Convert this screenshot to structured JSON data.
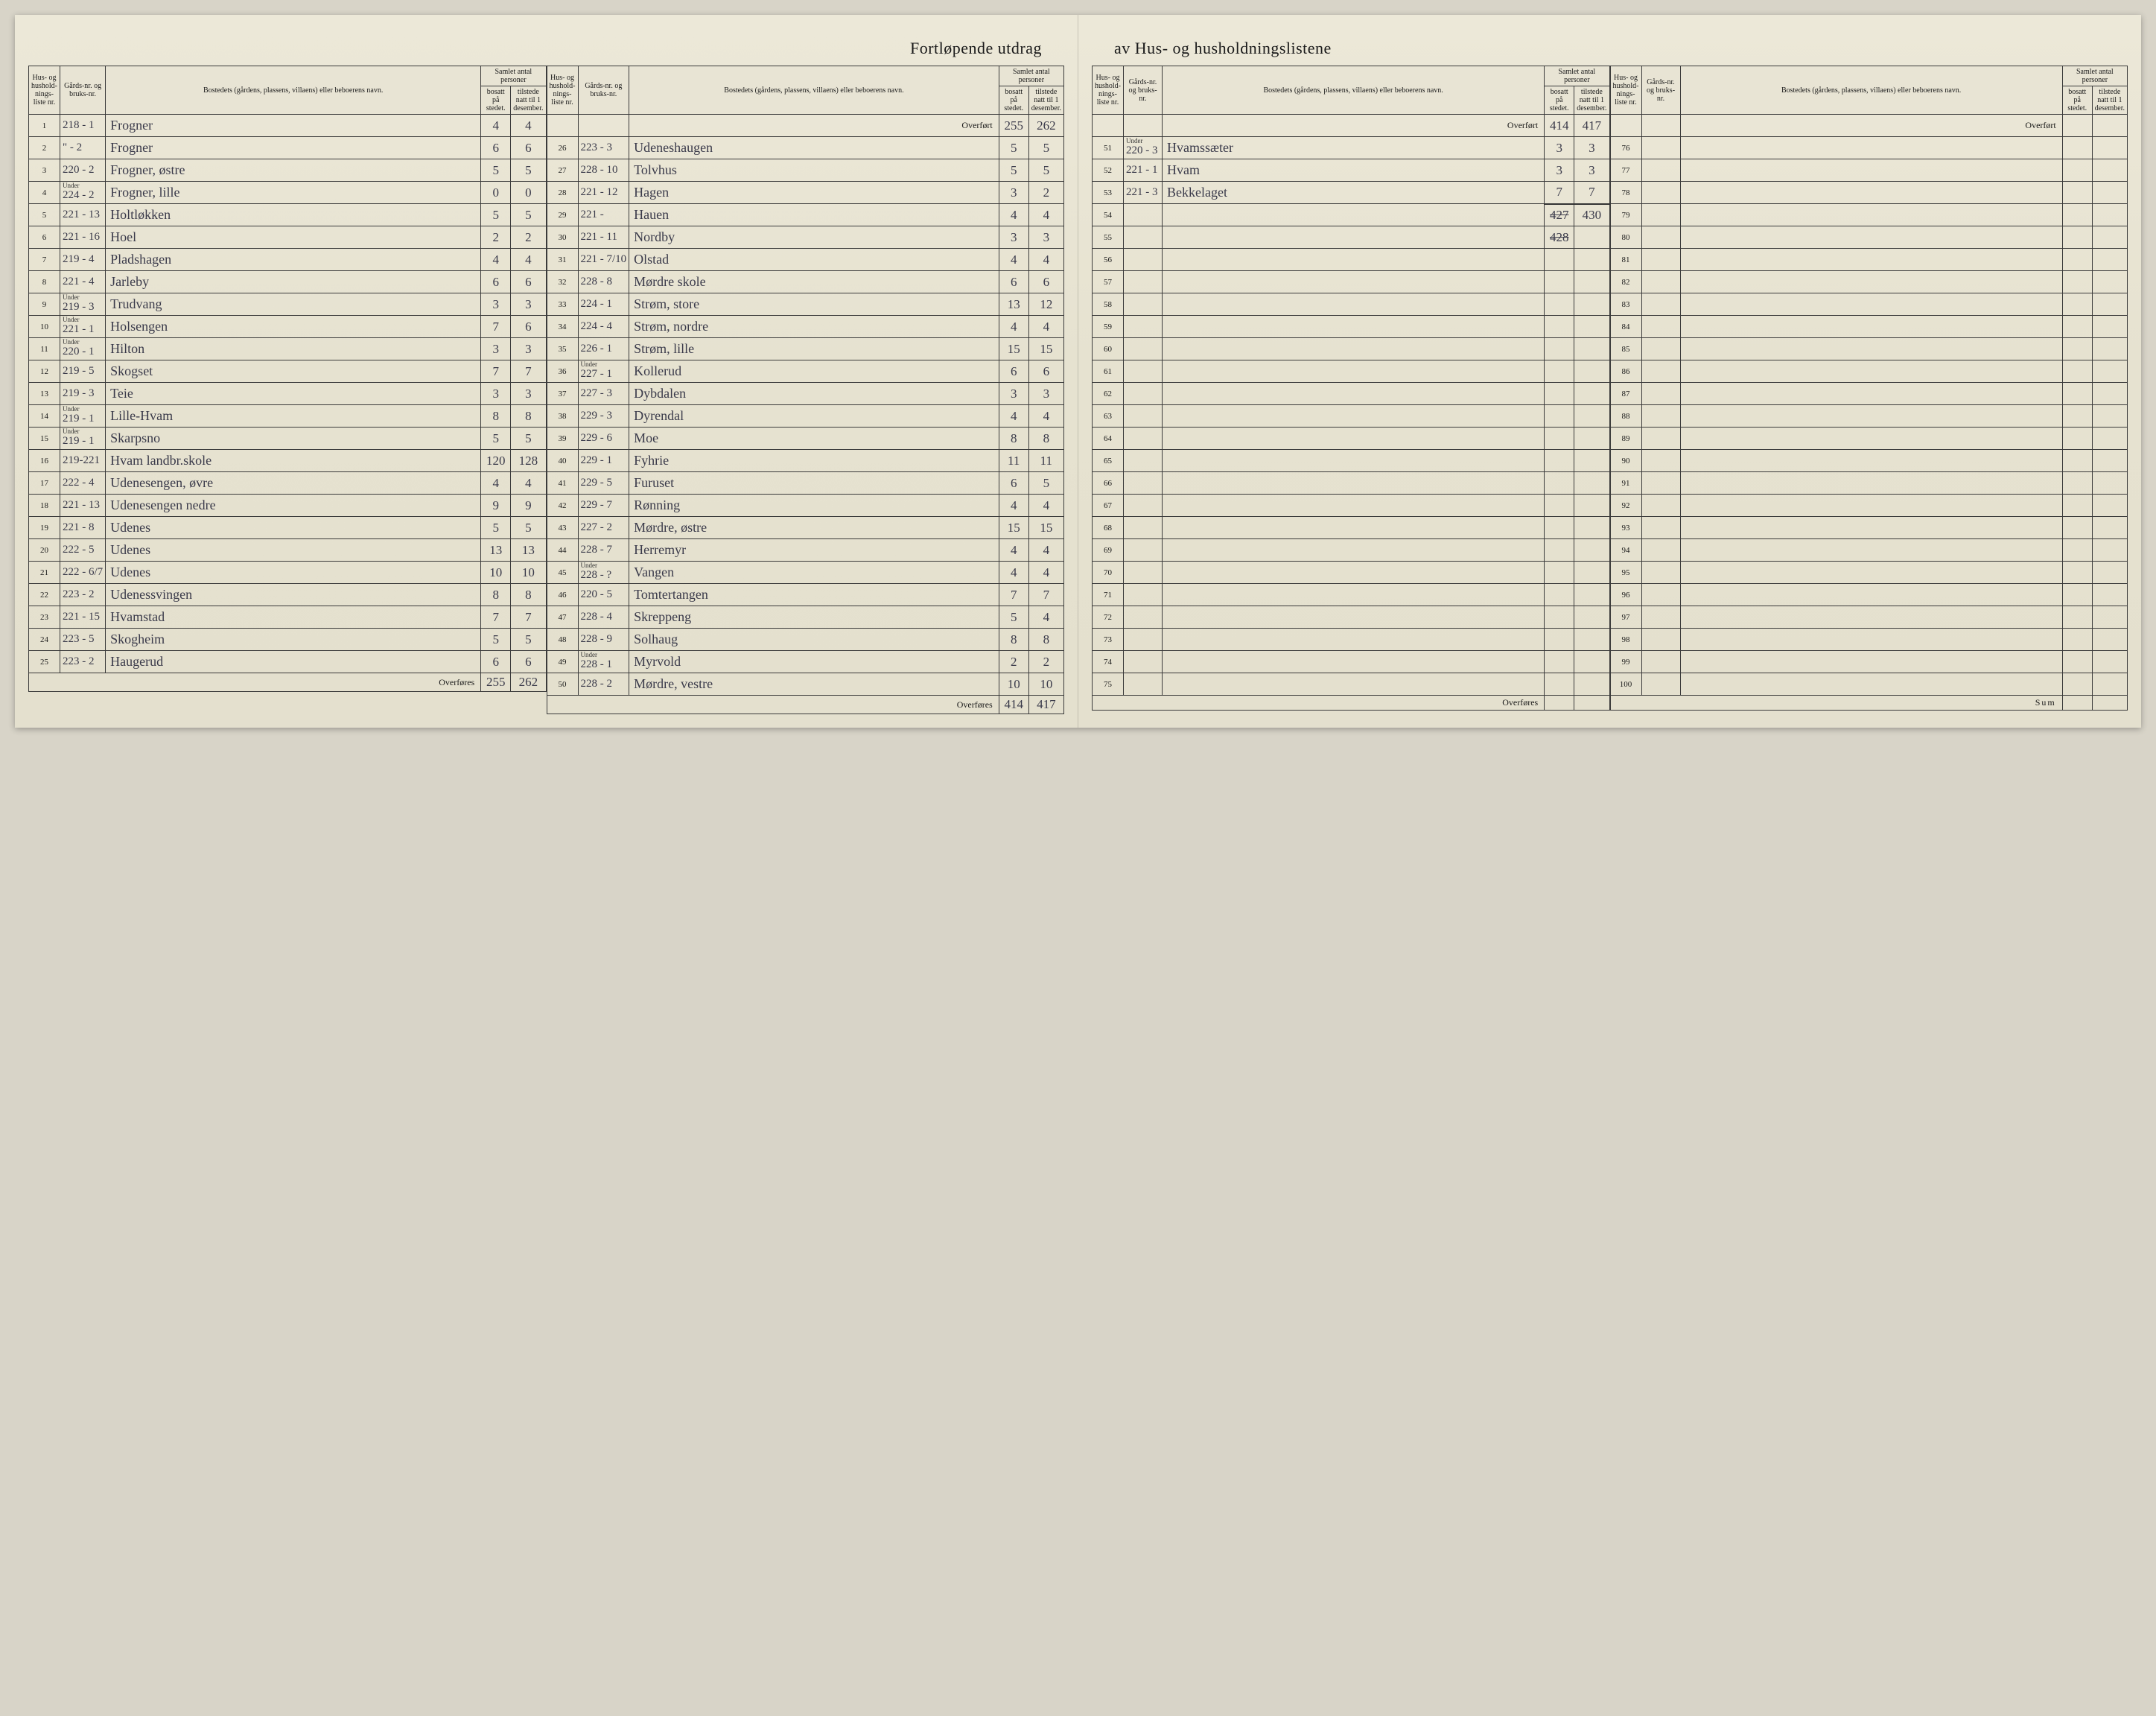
{
  "title_left": "Fortløpende utdrag",
  "title_right": "av Hus- og husholdningslistene",
  "headers": {
    "liste": "Hus- og hushold-nings-liste nr.",
    "gards": "Gårds-nr. og bruks-nr.",
    "bosted": "Bostedets (gårdens, plassens, villaens) eller beboerens navn.",
    "samlet_group": "Samlet antal personer",
    "bosatt": "bosatt på stedet.",
    "tilstede": "tilstede natt til 1 desember."
  },
  "labels": {
    "overfort": "Overført",
    "overfores": "Overføres",
    "sum": "Sum",
    "under": "Under"
  },
  "carry": {
    "col2_top_bosatt": "255",
    "col2_top_tilstede": "262",
    "col1_bot_bosatt": "255",
    "col1_bot_tilstede": "262",
    "col2_bot_bosatt": "414",
    "col2_bot_tilstede": "417",
    "col3_top_bosatt": "414",
    "col3_top_tilstede": "417",
    "col3_tot_bosatt_struck": "427",
    "col3_tot_bosatt_struck2": "428",
    "col3_tot_tilstede": "430"
  },
  "col1": [
    {
      "n": "1",
      "g": "218 - 1",
      "name": "Frogner",
      "b": "4",
      "t": "4"
    },
    {
      "n": "2",
      "g": "\" - 2",
      "name": "Frogner",
      "b": "6",
      "t": "6"
    },
    {
      "n": "3",
      "g": "220 - 2",
      "name": "Frogner, østre",
      "b": "5",
      "t": "5"
    },
    {
      "n": "4",
      "g": "224 - 2",
      "under": true,
      "name": "Frogner, lille",
      "b": "0",
      "t": "0"
    },
    {
      "n": "5",
      "g": "221 - 13",
      "name": "Holtløkken",
      "b": "5",
      "t": "5"
    },
    {
      "n": "6",
      "g": "221 - 16",
      "name": "Hoel",
      "b": "2",
      "t": "2"
    },
    {
      "n": "7",
      "g": "219 - 4",
      "name": "Pladshagen",
      "b": "4",
      "t": "4"
    },
    {
      "n": "8",
      "g": "221 - 4",
      "name": "Jarleby",
      "b": "6",
      "t": "6"
    },
    {
      "n": "9",
      "g": "219 - 3",
      "under": true,
      "name": "Trudvang",
      "b": "3",
      "t": "3"
    },
    {
      "n": "10",
      "g": "221 - 1",
      "under": true,
      "name": "Holsengen",
      "b": "7",
      "t": "6"
    },
    {
      "n": "11",
      "g": "220 - 1",
      "under": true,
      "name": "Hilton",
      "b": "3",
      "t": "3"
    },
    {
      "n": "12",
      "g": "219 - 5",
      "name": "Skogset",
      "b": "7",
      "t": "7"
    },
    {
      "n": "13",
      "g": "219 - 3",
      "name": "Teie",
      "b": "3",
      "t": "3"
    },
    {
      "n": "14",
      "g": "219 - 1",
      "under": true,
      "name": "Lille-Hvam",
      "b": "8",
      "t": "8"
    },
    {
      "n": "15",
      "g": "219 - 1",
      "under": true,
      "name": "Skarpsno",
      "b": "5",
      "t": "5"
    },
    {
      "n": "16",
      "g": "219-221",
      "name": "Hvam landbr.skole",
      "b": "120",
      "t": "128"
    },
    {
      "n": "17",
      "g": "222 - 4",
      "name": "Udenesengen, øvre",
      "b": "4",
      "t": "4"
    },
    {
      "n": "18",
      "g": "221 - 13",
      "name": "Udenesengen nedre",
      "b": "9",
      "t": "9"
    },
    {
      "n": "19",
      "g": "221 - 8",
      "name": "Udenes",
      "b": "5",
      "t": "5"
    },
    {
      "n": "20",
      "g": "222 - 5",
      "name": "Udenes",
      "b": "13",
      "t": "13"
    },
    {
      "n": "21",
      "g": "222 - 6/7",
      "name": "Udenes",
      "b": "10",
      "t": "10"
    },
    {
      "n": "22",
      "g": "223 - 2",
      "name": "Udenessvingen",
      "b": "8",
      "t": "8"
    },
    {
      "n": "23",
      "g": "221 - 15",
      "name": "Hvamstad",
      "b": "7",
      "t": "7"
    },
    {
      "n": "24",
      "g": "223 - 5",
      "name": "Skogheim",
      "b": "5",
      "t": "5"
    },
    {
      "n": "25",
      "g": "223 - 2",
      "name": "Haugerud",
      "b": "6",
      "t": "6"
    }
  ],
  "col2": [
    {
      "n": "26",
      "g": "223 - 3",
      "name": "Udeneshaugen",
      "b": "5",
      "t": "5"
    },
    {
      "n": "27",
      "g": "228 - 10",
      "name": "Tolvhus",
      "b": "5",
      "t": "5"
    },
    {
      "n": "28",
      "g": "221 - 12",
      "name": "Hagen",
      "b": "3",
      "t": "2"
    },
    {
      "n": "29",
      "g": "221 -",
      "name": "Hauen",
      "b": "4",
      "t": "4"
    },
    {
      "n": "30",
      "g": "221 - 11",
      "name": "Nordby",
      "b": "3",
      "t": "3"
    },
    {
      "n": "31",
      "g": "221 - 7/10",
      "name": "Olstad",
      "b": "4",
      "t": "4"
    },
    {
      "n": "32",
      "g": "228 - 8",
      "name": "Mørdre skole",
      "b": "6",
      "t": "6"
    },
    {
      "n": "33",
      "g": "224 - 1",
      "name": "Strøm, store",
      "b": "13",
      "t": "12"
    },
    {
      "n": "34",
      "g": "224 - 4",
      "name": "Strøm, nordre",
      "b": "4",
      "t": "4"
    },
    {
      "n": "35",
      "g": "226 - 1",
      "name": "Strøm, lille",
      "b": "15",
      "t": "15"
    },
    {
      "n": "36",
      "g": "227 - 1",
      "under": true,
      "name": "Kollerud",
      "b": "6",
      "t": "6"
    },
    {
      "n": "37",
      "g": "227 - 3",
      "name": "Dybdalen",
      "b": "3",
      "t": "3"
    },
    {
      "n": "38",
      "g": "229 - 3",
      "name": "Dyrendal",
      "b": "4",
      "t": "4"
    },
    {
      "n": "39",
      "g": "229 - 6",
      "name": "Moe",
      "b": "8",
      "t": "8"
    },
    {
      "n": "40",
      "g": "229 - 1",
      "name": "Fyhrie",
      "b": "11",
      "t": "11"
    },
    {
      "n": "41",
      "g": "229 - 5",
      "name": "Furuset",
      "b": "6",
      "t": "5"
    },
    {
      "n": "42",
      "g": "229 - 7",
      "name": "Rønning",
      "b": "4",
      "t": "4"
    },
    {
      "n": "43",
      "g": "227 - 2",
      "name": "Mørdre, østre",
      "b": "15",
      "t": "15"
    },
    {
      "n": "44",
      "g": "228 - 7",
      "name": "Herremyr",
      "b": "4",
      "t": "4"
    },
    {
      "n": "45",
      "g": "228 - ?",
      "under": true,
      "name": "Vangen",
      "b": "4",
      "t": "4"
    },
    {
      "n": "46",
      "g": "220 - 5",
      "name": "Tomtertangen",
      "b": "7",
      "t": "7"
    },
    {
      "n": "47",
      "g": "228 - 4",
      "name": "Skreppeng",
      "b": "5",
      "t": "4"
    },
    {
      "n": "48",
      "g": "228 - 9",
      "name": "Solhaug",
      "b": "8",
      "t": "8"
    },
    {
      "n": "49",
      "g": "228 - 1",
      "under": true,
      "name": "Myrvold",
      "b": "2",
      "t": "2"
    },
    {
      "n": "50",
      "g": "228 - 2",
      "name": "Mørdre, vestre",
      "b": "10",
      "t": "10"
    }
  ],
  "col3": [
    {
      "n": "51",
      "g": "220 - 3",
      "under": true,
      "name": "Hvamssæter",
      "b": "3",
      "t": "3"
    },
    {
      "n": "52",
      "g": "221 - 1",
      "name": "Hvam",
      "b": "3",
      "t": "3"
    },
    {
      "n": "53",
      "g": "221 - 3",
      "name": "Bekkelaget",
      "b": "7",
      "t": "7"
    },
    {
      "n": "54",
      "g": "",
      "name": "",
      "b": "",
      "t": ""
    },
    {
      "n": "55",
      "g": "",
      "name": "",
      "b": "",
      "t": ""
    },
    {
      "n": "56",
      "g": "",
      "name": "",
      "b": "",
      "t": ""
    },
    {
      "n": "57",
      "g": "",
      "name": "",
      "b": "",
      "t": ""
    },
    {
      "n": "58",
      "g": "",
      "name": "",
      "b": "",
      "t": ""
    },
    {
      "n": "59",
      "g": "",
      "name": "",
      "b": "",
      "t": ""
    },
    {
      "n": "60",
      "g": "",
      "name": "",
      "b": "",
      "t": ""
    },
    {
      "n": "61",
      "g": "",
      "name": "",
      "b": "",
      "t": ""
    },
    {
      "n": "62",
      "g": "",
      "name": "",
      "b": "",
      "t": ""
    },
    {
      "n": "63",
      "g": "",
      "name": "",
      "b": "",
      "t": ""
    },
    {
      "n": "64",
      "g": "",
      "name": "",
      "b": "",
      "t": ""
    },
    {
      "n": "65",
      "g": "",
      "name": "",
      "b": "",
      "t": ""
    },
    {
      "n": "66",
      "g": "",
      "name": "",
      "b": "",
      "t": ""
    },
    {
      "n": "67",
      "g": "",
      "name": "",
      "b": "",
      "t": ""
    },
    {
      "n": "68",
      "g": "",
      "name": "",
      "b": "",
      "t": ""
    },
    {
      "n": "69",
      "g": "",
      "name": "",
      "b": "",
      "t": ""
    },
    {
      "n": "70",
      "g": "",
      "name": "",
      "b": "",
      "t": ""
    },
    {
      "n": "71",
      "g": "",
      "name": "",
      "b": "",
      "t": ""
    },
    {
      "n": "72",
      "g": "",
      "name": "",
      "b": "",
      "t": ""
    },
    {
      "n": "73",
      "g": "",
      "name": "",
      "b": "",
      "t": ""
    },
    {
      "n": "74",
      "g": "",
      "name": "",
      "b": "",
      "t": ""
    },
    {
      "n": "75",
      "g": "",
      "name": "",
      "b": "",
      "t": ""
    }
  ],
  "col4": [
    {
      "n": "76"
    },
    {
      "n": "77"
    },
    {
      "n": "78"
    },
    {
      "n": "79"
    },
    {
      "n": "80"
    },
    {
      "n": "81"
    },
    {
      "n": "82"
    },
    {
      "n": "83"
    },
    {
      "n": "84"
    },
    {
      "n": "85"
    },
    {
      "n": "86"
    },
    {
      "n": "87"
    },
    {
      "n": "88"
    },
    {
      "n": "89"
    },
    {
      "n": "90"
    },
    {
      "n": "91"
    },
    {
      "n": "92"
    },
    {
      "n": "93"
    },
    {
      "n": "94"
    },
    {
      "n": "95"
    },
    {
      "n": "96"
    },
    {
      "n": "97"
    },
    {
      "n": "98"
    },
    {
      "n": "99"
    },
    {
      "n": "100"
    }
  ]
}
